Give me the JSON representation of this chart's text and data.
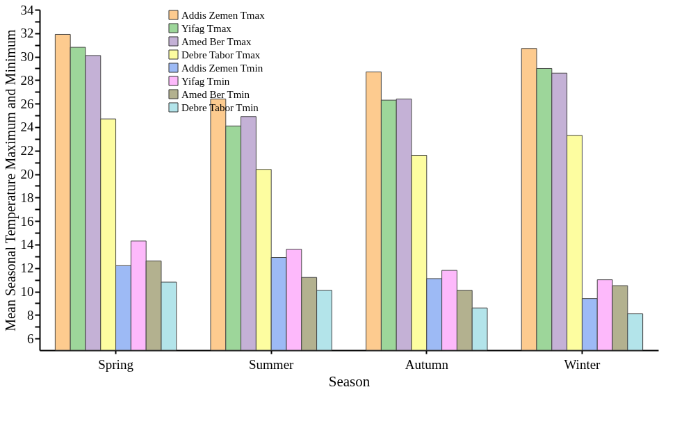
{
  "chart_data": {
    "type": "bar",
    "xlabel": "Season",
    "ylabel": "Mean Seasonal Temperature Maximum and Minimum",
    "categories": [
      "Spring",
      "Summer",
      "Autumn",
      "Winter"
    ],
    "series": [
      {
        "name": "Addis Zemen Tmax",
        "color": "#fdcb8f",
        "values": [
          31.9,
          26.4,
          28.7,
          30.7
        ]
      },
      {
        "name": "Yifag Tmax",
        "color": "#9dd69a",
        "values": [
          30.8,
          24.1,
          26.3,
          29.0
        ]
      },
      {
        "name": "Amed Ber Tmax",
        "color": "#c4b1d6",
        "values": [
          30.1,
          24.9,
          26.4,
          28.6
        ]
      },
      {
        "name": "Debre Tabor Tmax",
        "color": "#fdfda0",
        "values": [
          24.7,
          20.4,
          21.6,
          23.3
        ]
      },
      {
        "name": "Addis Zemen Tmin",
        "color": "#9dbaf5",
        "values": [
          12.2,
          12.9,
          11.1,
          9.4
        ]
      },
      {
        "name": "Yifag Tmin",
        "color": "#fdb9fb",
        "values": [
          14.3,
          13.6,
          11.8,
          11.0
        ]
      },
      {
        "name": "Amed Ber Tmin",
        "color": "#b3b18f",
        "values": [
          12.6,
          11.2,
          10.1,
          10.5
        ]
      },
      {
        "name": "Debre Tabor Tmin",
        "color": "#b3e4ea",
        "values": [
          10.8,
          10.1,
          8.6,
          8.1
        ]
      }
    ],
    "ylim": [
      5,
      34
    ],
    "yticks": [
      6,
      {
        "value": 7,
        "label": null
      },
      8,
      {
        "value": 9,
        "label": null
      },
      10,
      {
        "value": 11,
        "label": null
      },
      12,
      {
        "value": 13,
        "label": null
      },
      14,
      {
        "value": 15,
        "label": null
      },
      16,
      {
        "value": 17,
        "label": null
      },
      18,
      {
        "value": 19,
        "label": null
      },
      20,
      {
        "value": 21,
        "label": null
      },
      22,
      {
        "value": 23,
        "label": null
      },
      24,
      {
        "value": 25,
        "label": null
      },
      26,
      {
        "value": 27,
        "label": null
      },
      28,
      {
        "value": 29,
        "label": null
      },
      30,
      {
        "value": 31,
        "label": null
      },
      32,
      {
        "value": 33,
        "label": null
      },
      34
    ],
    "grid": false,
    "legend": "top"
  }
}
